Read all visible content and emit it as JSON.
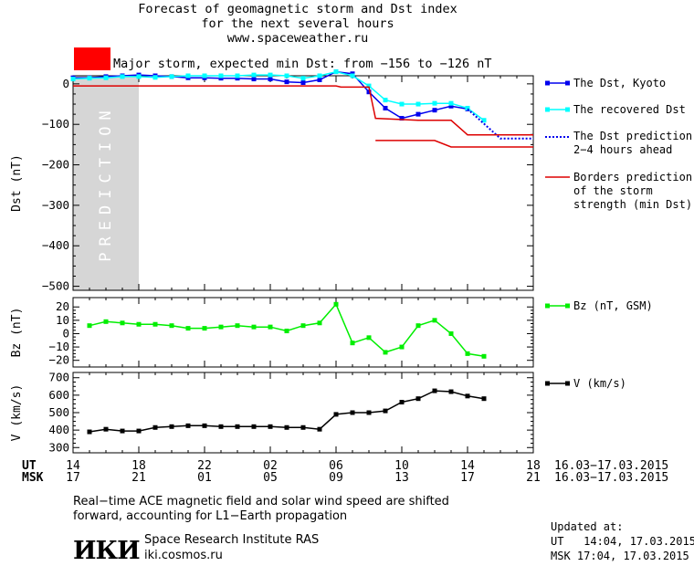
{
  "header": {
    "title_lines": [
      "Forecast of geomagnetic storm and Dst index",
      "for the next several hours",
      "www.spaceweather.ru"
    ],
    "storm_text": "Major storm, expected min Dst: from −156 to −126 nT",
    "storm_color": "#ff0000"
  },
  "chart_data": [
    {
      "type": "line",
      "id": "dst",
      "ylabel": "Dst (nT)",
      "ylim": [
        -510,
        20
      ],
      "y_ticks": [
        0,
        -100,
        -200,
        -300,
        -400,
        -500
      ],
      "y_tick_labels": [
        "0",
        "−100",
        "−200",
        "−300",
        "−400",
        "−500"
      ],
      "x_hours_range": [
        14,
        18
      ],
      "prediction_band": [
        14,
        18
      ],
      "prediction_label": "PREDICTION",
      "series": [
        {
          "name": "The Dst, Kyoto",
          "color": "#0000ee",
          "style": "line-square",
          "x": [
            14.0,
            15.0,
            16.0,
            17.0,
            18.0,
            19.0,
            20.0,
            21.0,
            22.0,
            23.0,
            24.0,
            25.0,
            26.0,
            27.0,
            28.0,
            29.0,
            30.0,
            31.0,
            32.0,
            33.0,
            34.0,
            35.0,
            36.0,
            37.0,
            38.0
          ],
          "y": [
            15,
            15,
            18,
            20,
            22,
            20,
            18,
            15,
            15,
            14,
            14,
            12,
            12,
            5,
            3,
            10,
            30,
            25,
            -20,
            -60,
            -85,
            -75,
            -65,
            -55,
            -62
          ]
        },
        {
          "name": "The recovered Dst",
          "color": "#00ffff",
          "style": "line-square",
          "x": [
            14.0,
            15.0,
            16.0,
            17.0,
            18.0,
            19.0,
            20.0,
            21.0,
            22.0,
            23.0,
            24.0,
            25.0,
            26.0,
            27.0,
            28.0,
            29.0,
            30.0,
            31.0,
            32.0,
            33.0,
            34.0,
            35.0,
            36.0,
            37.0,
            38.0,
            39.0
          ],
          "y": [
            12,
            14,
            15,
            18,
            18,
            16,
            18,
            20,
            20,
            20,
            20,
            22,
            22,
            20,
            14,
            20,
            30,
            20,
            -5,
            -40,
            -50,
            -50,
            -48,
            -48,
            -60,
            -90
          ]
        },
        {
          "name": "The Dst prediction\n2−4 hours ahead",
          "color": "#0000ee",
          "style": "dotted",
          "x": [
            38.0,
            40.0,
            42.0
          ],
          "y": [
            -62,
            -135,
            -135
          ]
        },
        {
          "name": "Borders prediction\nof the storm\nstrength (min Dst)",
          "color": "#dd0000",
          "style": "line",
          "x": [
            14.0,
            30.0,
            30.3,
            32.0,
            32.4,
            35.0,
            36.0,
            37.0,
            38.0,
            42.0
          ],
          "y": [
            -5,
            -5,
            -8,
            -8,
            -85,
            -90,
            -90,
            -90,
            -126,
            -126
          ]
        },
        {
          "name": "",
          "color": "#dd0000",
          "style": "line",
          "x": [
            32.4,
            36.0,
            37.0,
            42.0
          ],
          "y": [
            -140,
            -140,
            -156,
            -156
          ]
        }
      ]
    },
    {
      "type": "line",
      "id": "bz",
      "ylabel": "Bz (nT)",
      "ylim": [
        -25,
        27
      ],
      "y_ticks": [
        20,
        10,
        0,
        -10,
        -20
      ],
      "y_tick_labels": [
        "20",
        "10",
        "0",
        "−10",
        "−20"
      ],
      "series": [
        {
          "name": "Bz (nT, GSM)",
          "color": "#00ee00",
          "style": "line-square",
          "x": [
            15.0,
            16.0,
            17.0,
            18.0,
            19.0,
            20.0,
            21.0,
            22.0,
            23.0,
            24.0,
            25.0,
            26.0,
            27.0,
            28.0,
            29.0,
            30.0,
            31.0,
            32.0,
            33.0,
            34.0,
            35.0,
            36.0,
            37.0,
            38.0,
            39.0
          ],
          "y": [
            6,
            9,
            8,
            7,
            7,
            6,
            4,
            4,
            5,
            6,
            5,
            5,
            2,
            6,
            8,
            22,
            -7,
            -3,
            -14,
            -10,
            6,
            10,
            0,
            -15,
            -17
          ]
        }
      ]
    },
    {
      "type": "line",
      "id": "v",
      "ylabel": "V (km/s)",
      "ylim": [
        270,
        730
      ],
      "y_ticks": [
        700,
        600,
        500,
        400,
        300
      ],
      "y_tick_labels": [
        "700",
        "600",
        "500",
        "400",
        "300"
      ],
      "series": [
        {
          "name": "V (km/s)",
          "color": "#000000",
          "style": "line-square",
          "x": [
            15.0,
            16.0,
            17.0,
            18.0,
            19.0,
            20.0,
            21.0,
            22.0,
            23.0,
            24.0,
            25.0,
            26.0,
            27.0,
            28.0,
            29.0,
            30.0,
            31.0,
            32.0,
            33.0,
            34.0,
            35.0,
            36.0,
            37.0,
            38.0,
            39.0
          ],
          "y": [
            390,
            405,
            395,
            395,
            415,
            420,
            425,
            425,
            420,
            420,
            420,
            420,
            415,
            415,
            405,
            490,
            500,
            500,
            510,
            560,
            580,
            625,
            620,
            595,
            580
          ]
        }
      ]
    }
  ],
  "x_axis": {
    "hours": [
      14,
      18,
      22,
      26,
      30,
      34,
      38,
      42
    ],
    "ut_label": "UT",
    "msk_label": "MSK",
    "ut_ticks": [
      "14",
      "18",
      "22",
      "02",
      "06",
      "10",
      "14",
      "18"
    ],
    "msk_ticks": [
      "17",
      "21",
      "01",
      "05",
      "09",
      "13",
      "17",
      "21"
    ],
    "ut_range": "16.03−17.03.2015",
    "msk_range": "16.03−17.03.2015"
  },
  "footer": {
    "note_line1": "Real−time ACE magnetic field and solar wind speed are shifted",
    "note_line2": "forward, accounting for L1−Earth propagation",
    "logo_text": "ИКИ",
    "institute": "Space Research Institute RAS",
    "site": "iki.cosmos.ru",
    "updated_label": "Updated at:",
    "updated_ut": "UT   14:04, 17.03.2015",
    "updated_msk": "MSK 17:04, 17.03.2015"
  }
}
